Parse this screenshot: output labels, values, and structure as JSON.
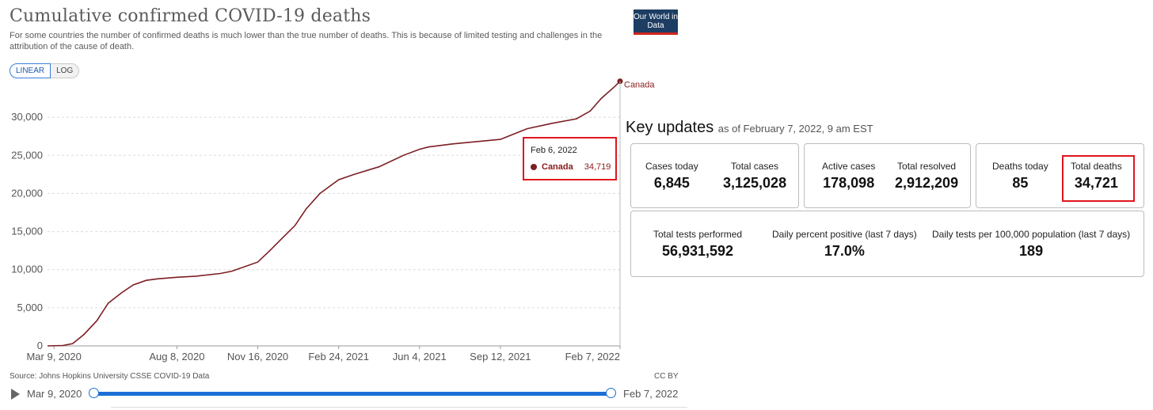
{
  "header": {
    "title": "Cumulative confirmed COVID-19 deaths",
    "subtitle": "For some countries the number of confirmed deaths is much lower than the true number of deaths. This is because of limited testing and challenges in the attribution of the cause of death.",
    "logo": "Our World in Data"
  },
  "scale_toggle": {
    "linear": "LINEAR",
    "log": "LOG",
    "selected": "LINEAR"
  },
  "chart_data": {
    "type": "line",
    "title": "Cumulative confirmed COVID-19 deaths",
    "x_tick_labels": [
      "Mar 9, 2020",
      "Aug 8, 2020",
      "Nov 16, 2020",
      "Feb 24, 2021",
      "Jun 4, 2021",
      "Sep 12, 2021",
      "Feb 7, 2022"
    ],
    "y_tick_labels": [
      "0",
      "5,000",
      "10,000",
      "15,000",
      "20,000",
      "25,000",
      "30,000"
    ],
    "ylim": [
      0,
      35000
    ],
    "xlim": [
      "2020-03-01",
      "2022-02-07"
    ],
    "grid": "horizontal-dashed",
    "series": [
      {
        "name": "Canada",
        "color": "#7c1f24",
        "points": [
          [
            "2020-03-01",
            0
          ],
          [
            "2020-03-20",
            50
          ],
          [
            "2020-04-01",
            300
          ],
          [
            "2020-04-15",
            1500
          ],
          [
            "2020-05-01",
            3300
          ],
          [
            "2020-05-15",
            5600
          ],
          [
            "2020-06-01",
            7000
          ],
          [
            "2020-06-15",
            8000
          ],
          [
            "2020-07-01",
            8600
          ],
          [
            "2020-07-15",
            8800
          ],
          [
            "2020-08-08",
            9000
          ],
          [
            "2020-09-01",
            9150
          ],
          [
            "2020-10-01",
            9500
          ],
          [
            "2020-10-15",
            9800
          ],
          [
            "2020-11-16",
            11000
          ],
          [
            "2020-12-01",
            12500
          ],
          [
            "2020-12-15",
            14000
          ],
          [
            "2021-01-01",
            15800
          ],
          [
            "2021-01-15",
            18000
          ],
          [
            "2021-02-01",
            20000
          ],
          [
            "2021-02-24",
            21800
          ],
          [
            "2021-03-15",
            22500
          ],
          [
            "2021-04-15",
            23500
          ],
          [
            "2021-05-15",
            25000
          ],
          [
            "2021-06-04",
            25800
          ],
          [
            "2021-06-15",
            26100
          ],
          [
            "2021-07-15",
            26500
          ],
          [
            "2021-09-12",
            27100
          ],
          [
            "2021-10-15",
            28500
          ],
          [
            "2021-11-15",
            29200
          ],
          [
            "2021-12-15",
            29800
          ],
          [
            "2022-01-01",
            30800
          ],
          [
            "2022-01-15",
            32500
          ],
          [
            "2022-02-01",
            34100
          ],
          [
            "2022-02-07",
            34721
          ]
        ]
      }
    ],
    "end_label": "Canada",
    "tooltip": {
      "date": "Feb 6, 2022",
      "series": "Canada",
      "value": "34,719"
    }
  },
  "footer": {
    "source": "Source: Johns Hopkins University CSSE COVID-19 Data",
    "license": "CC BY",
    "timeline_start": "Mar 9, 2020",
    "timeline_end": "Feb 7, 2022"
  },
  "key_updates": {
    "heading": "Key updates",
    "as_of": "as of February 7, 2022, 9 am EST",
    "cases_today_label": "Cases today",
    "cases_today": "6,845",
    "total_cases_label": "Total cases",
    "total_cases": "3,125,028",
    "active_cases_label": "Active cases",
    "active_cases": "178,098",
    "total_resolved_label": "Total resolved",
    "total_resolved": "2,912,209",
    "deaths_today_label": "Deaths today",
    "deaths_today": "85",
    "total_deaths_label": "Total deaths",
    "total_deaths": "34,721",
    "tests_label": "Total tests performed",
    "tests": "56,931,592",
    "positivity_label": "Daily percent positive (last 7 days)",
    "positivity": "17.0%",
    "tests_per_label": "Daily tests per 100,000 population (last 7 days)",
    "tests_per": "189"
  }
}
